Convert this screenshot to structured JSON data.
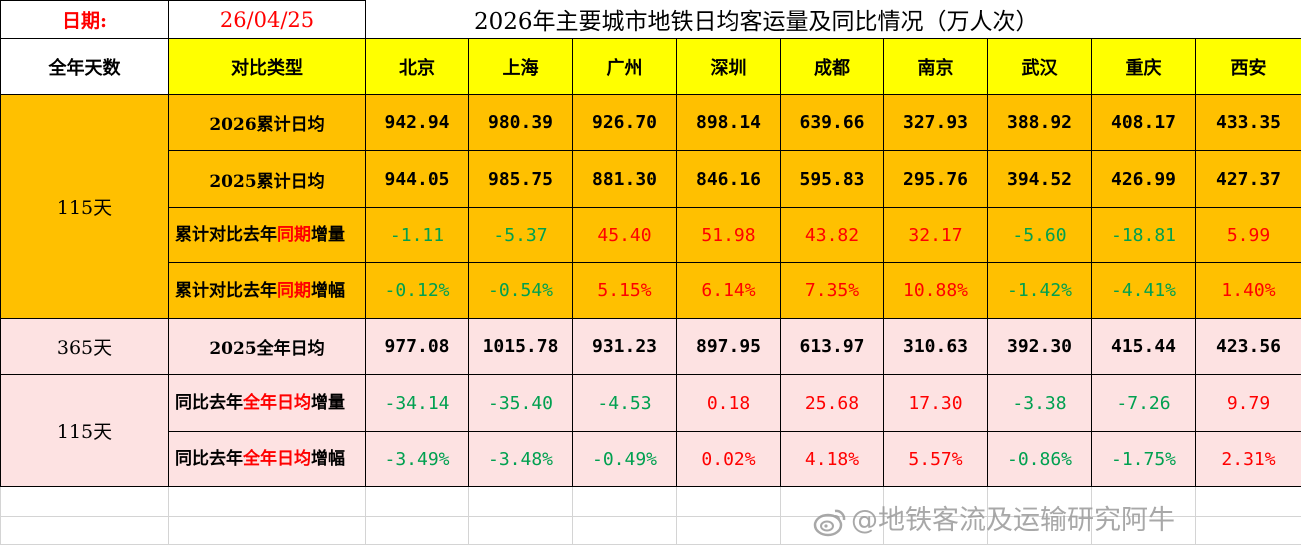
{
  "date_label": "日期:",
  "date_value": "26/04/25",
  "title": "2026年主要城市地铁日均客运量及同比情况（万人次）",
  "headers": {
    "days": "全年天数",
    "type": "对比类型",
    "cities": [
      "北京",
      "上海",
      "广州",
      "深圳",
      "成都",
      "南京",
      "武汉",
      "重庆",
      "西安"
    ]
  },
  "groups": {
    "g1_days": "115天",
    "g2_days": "365天",
    "g3_days": "115天"
  },
  "rows": [
    {
      "label": "2026累计日均",
      "values": [
        "942.94",
        "980.39",
        "926.70",
        "898.14",
        "639.66",
        "327.93",
        "388.92",
        "408.17",
        "433.35"
      ]
    },
    {
      "label": "2025累计日均",
      "values": [
        "944.05",
        "985.75",
        "881.30",
        "846.16",
        "595.83",
        "295.76",
        "394.52",
        "426.99",
        "427.37"
      ]
    },
    {
      "label_a": "累计对比去年",
      "label_hl": "同期",
      "label_b": "增量",
      "values": [
        "-1.11",
        "-5.37",
        "45.40",
        "51.98",
        "43.82",
        "32.17",
        "-5.60",
        "-18.81",
        "5.99"
      ]
    },
    {
      "label_a": "累计对比去年",
      "label_hl": "同期",
      "label_b": "增幅",
      "values": [
        "-0.12%",
        "-0.54%",
        "5.15%",
        "6.14%",
        "7.35%",
        "10.88%",
        "-1.42%",
        "-4.41%",
        "1.40%"
      ]
    },
    {
      "label": "2025全年日均",
      "values": [
        "977.08",
        "1015.78",
        "931.23",
        "897.95",
        "613.97",
        "310.63",
        "392.30",
        "415.44",
        "423.56"
      ]
    },
    {
      "label_a": "同比去年",
      "label_hl": "全年日均",
      "label_b": "增量",
      "values": [
        "-34.14",
        "-35.40",
        "-4.53",
        "0.18",
        "25.68",
        "17.30",
        "-3.38",
        "-7.26",
        "9.79"
      ]
    },
    {
      "label_a": "同比去年",
      "label_hl": "全年日均",
      "label_b": "增幅",
      "values": [
        "-3.49%",
        "-3.48%",
        "-0.49%",
        "0.02%",
        "4.18%",
        "5.57%",
        "-0.86%",
        "-1.75%",
        "2.31%"
      ]
    }
  ],
  "watermark": "@地铁客流及运输研究阿牛",
  "colors": {
    "header_yellow": "#ffff00",
    "block_orange": "#ffc000",
    "block_pink": "#fde2e2",
    "positive": "#ff0000",
    "negative": "#00a050"
  }
}
